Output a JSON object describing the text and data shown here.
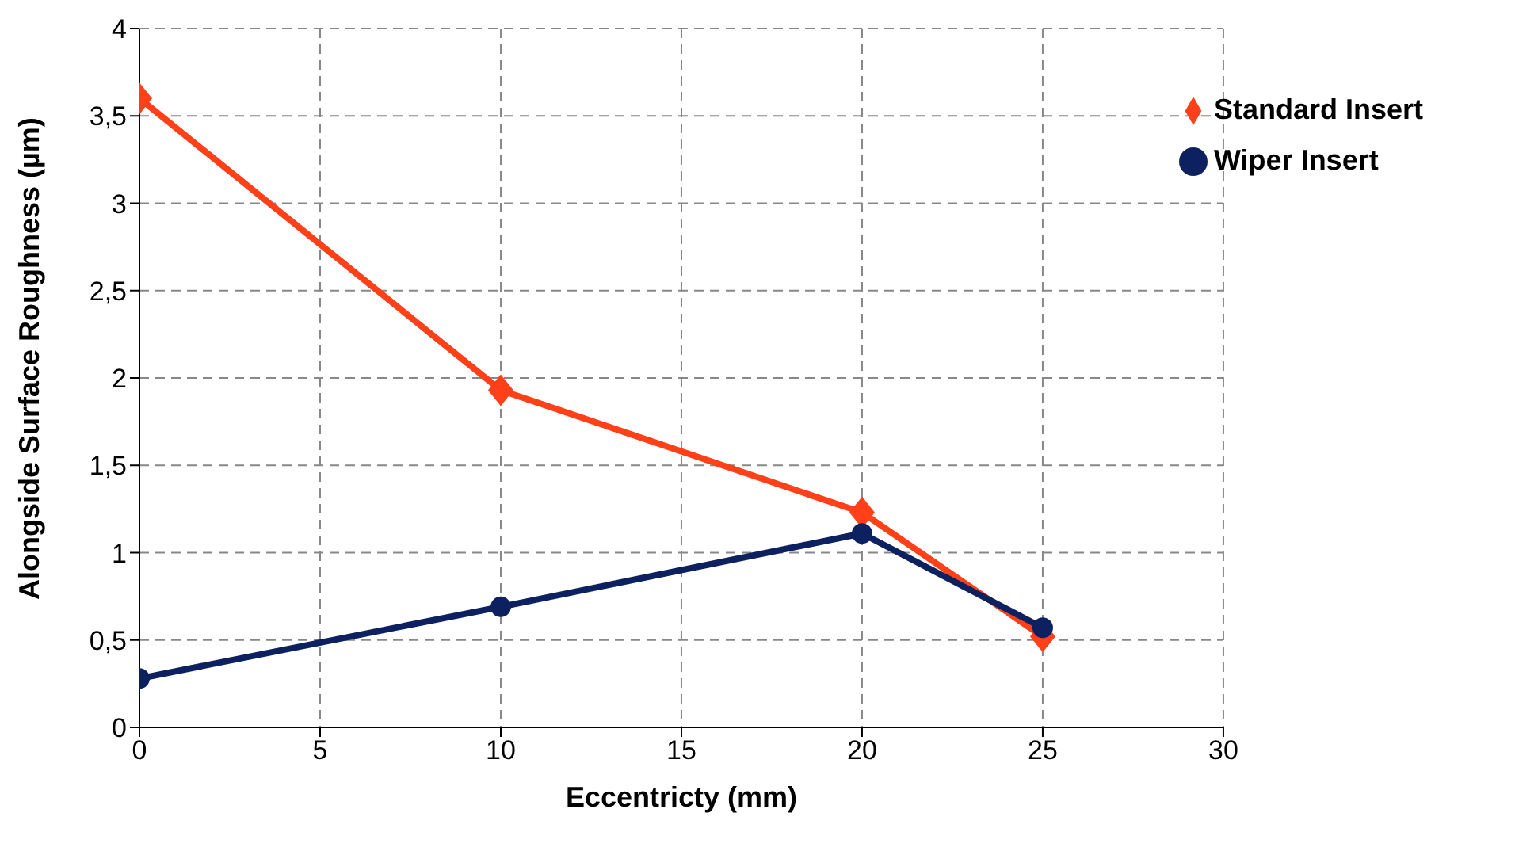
{
  "chart_data": {
    "type": "line",
    "xlabel": "Eccentricty (mm)",
    "ylabel": "Alongside Surface Roughness (µm)",
    "x": [
      0,
      10,
      20,
      25
    ],
    "series": [
      {
        "name": "Standard Insert",
        "color": "#ff4019",
        "marker": "diamond",
        "values": [
          3.6,
          1.93,
          1.23,
          0.52
        ]
      },
      {
        "name": "Wiper Insert",
        "color": "#0d2160",
        "marker": "circle",
        "values": [
          0.28,
          0.69,
          1.11,
          0.57
        ]
      }
    ],
    "xlim": [
      0,
      30
    ],
    "xticks": [
      0,
      5,
      10,
      15,
      20,
      25,
      30
    ],
    "ylim": [
      0,
      4
    ],
    "yticks": [
      0,
      {
        "value": 0.5,
        "label": "0,5"
      },
      1,
      {
        "value": 1.5,
        "label": "1,5"
      },
      2,
      {
        "value": 2.5,
        "label": "2,5"
      },
      3,
      {
        "value": 3.5,
        "label": "3,5"
      },
      4
    ],
    "grid": true,
    "legend": "top right",
    "line_style": "solid"
  }
}
